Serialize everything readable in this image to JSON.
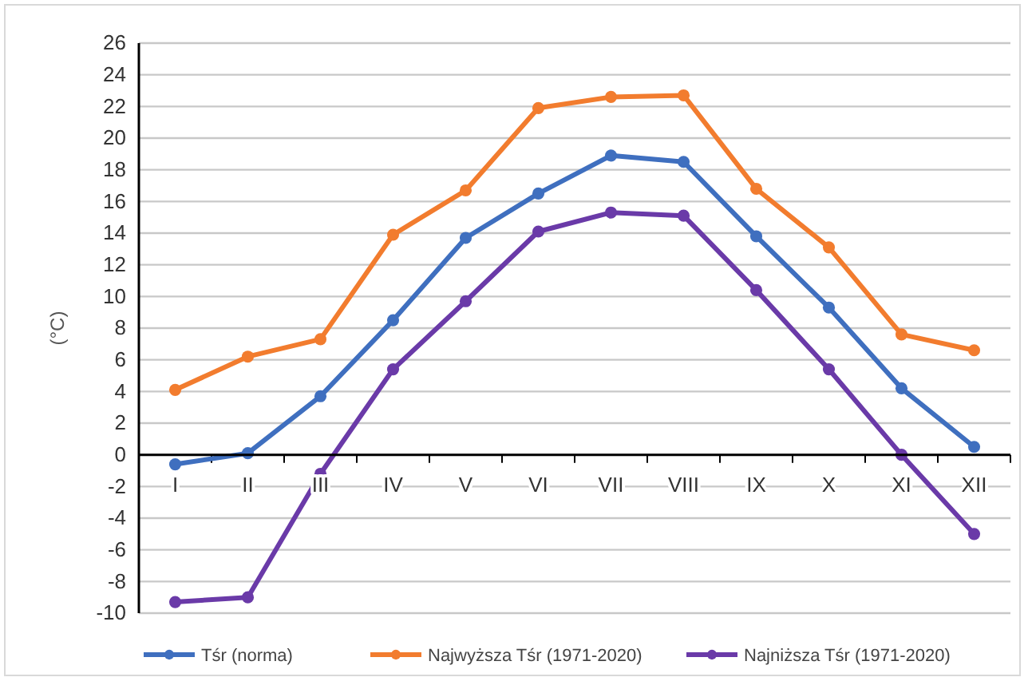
{
  "chart_data": {
    "type": "line",
    "ylabel": "(°C)",
    "categories": [
      "I",
      "II",
      "III",
      "IV",
      "V",
      "VI",
      "VII",
      "VIII",
      "IX",
      "X",
      "XI",
      "XII"
    ],
    "series": [
      {
        "name": "Tśr (norma)",
        "color": "#3f6fbf",
        "values": [
          -0.6,
          0.1,
          3.7,
          8.5,
          13.7,
          16.5,
          18.9,
          18.5,
          13.8,
          9.3,
          4.2,
          0.5
        ]
      },
      {
        "name": "Najwyższa Tśr (1971-2020)",
        "color": "#f27c2e",
        "values": [
          4.1,
          6.2,
          7.3,
          13.9,
          16.7,
          21.9,
          22.6,
          22.7,
          16.8,
          13.1,
          7.6,
          6.6
        ]
      },
      {
        "name": "Najniższa Tśr (1971-2020)",
        "color": "#6a3aa8",
        "values": [
          -9.3,
          -9.0,
          -1.2,
          5.4,
          9.7,
          14.1,
          15.3,
          15.1,
          10.4,
          5.4,
          0.0,
          -5.0
        ]
      }
    ],
    "ylim": [
      -10,
      26
    ],
    "yticks": [
      -10,
      -8,
      -6,
      -4,
      -2,
      0,
      2,
      4,
      6,
      8,
      10,
      12,
      14,
      16,
      18,
      20,
      22,
      24,
      26
    ],
    "grid": "y",
    "legend": "bottom",
    "marker": "circle",
    "line_style": "solid"
  }
}
